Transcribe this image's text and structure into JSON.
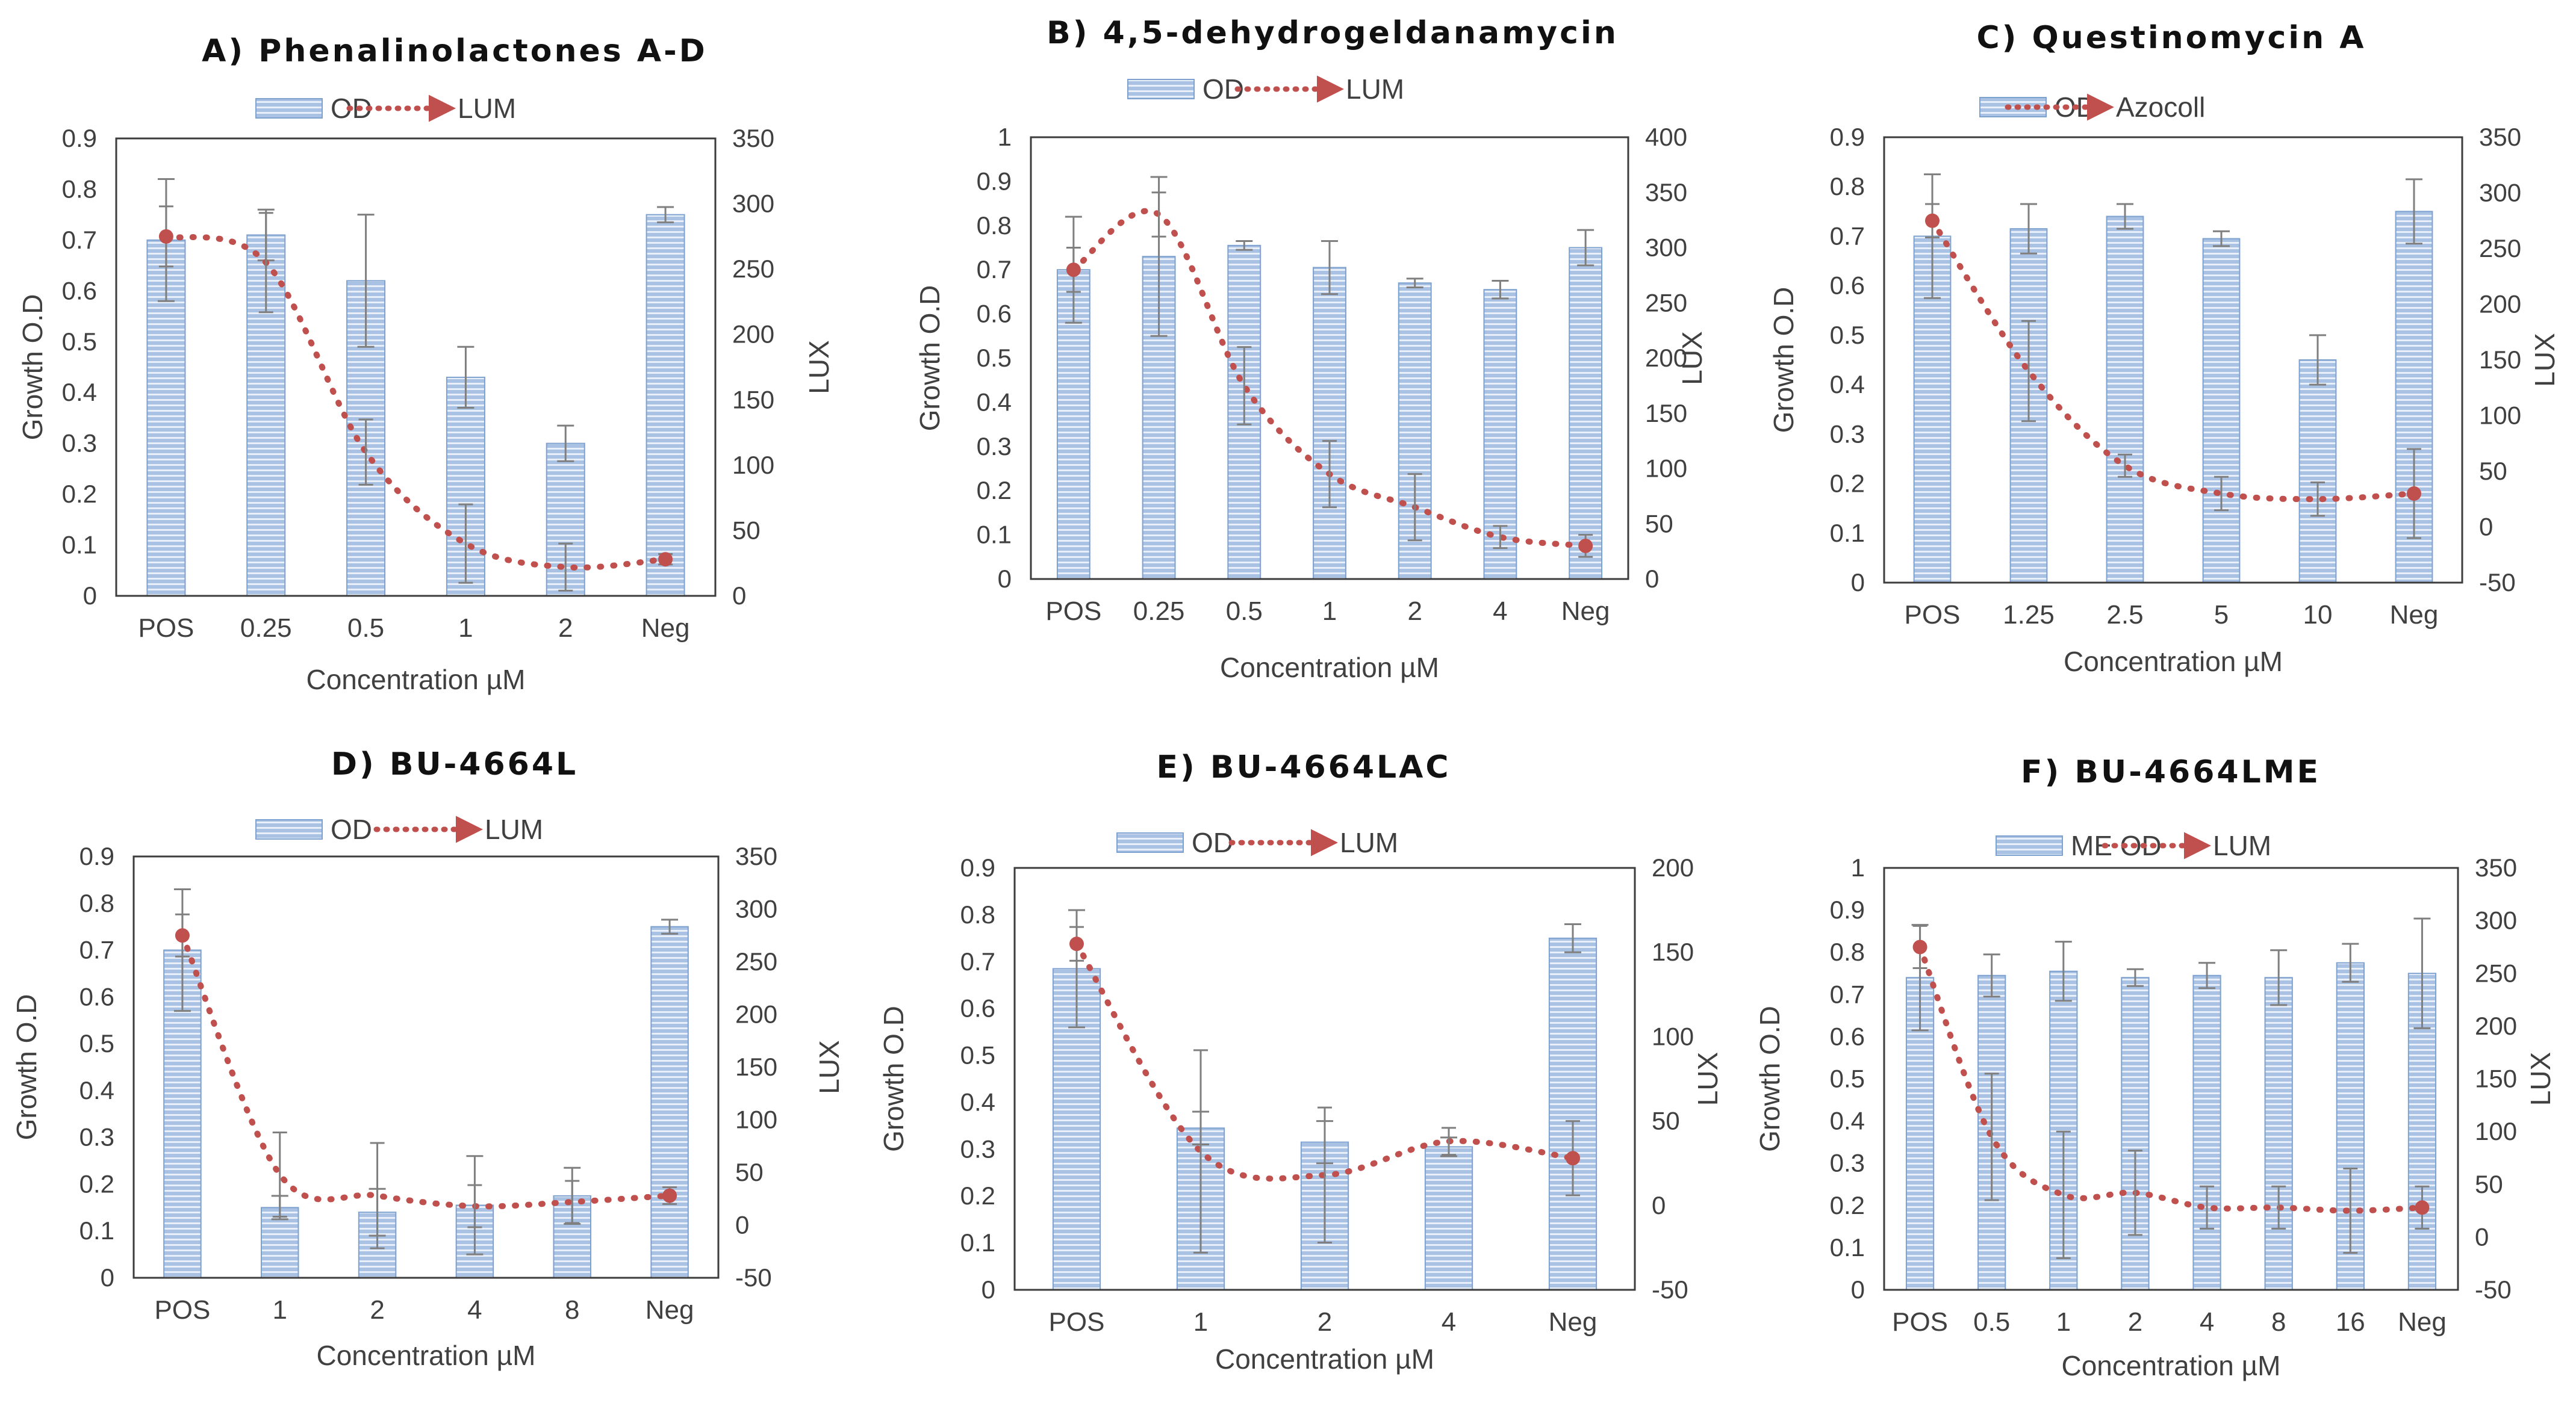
{
  "figure": {
    "colors": {
      "bar_fill": "#a9c1e2",
      "bar_stripe": "#ffffff",
      "bar_edge": "#7ea2d0",
      "line": "#c0504d",
      "error": "#7f7f7f",
      "frame": "#3c3c3c"
    }
  },
  "chart_data": [
    {
      "type": "bar",
      "title": "A) Phenalinolactones A-D",
      "xlabel": "Concentration µM",
      "ylabel": "Growth O.D",
      "y2label": "LUX",
      "categories": [
        "POS",
        "0.25",
        "0.5",
        "1",
        "2",
        "Neg"
      ],
      "ylim": [
        0,
        0.9
      ],
      "yticks": [
        "0",
        "0.1",
        "0.2",
        "0.3",
        "0.4",
        "0.5",
        "0.6",
        "0.7",
        "0.8",
        "0.9"
      ],
      "y2lim": [
        0,
        350
      ],
      "y2ticks": [
        "0",
        "50",
        "100",
        "150",
        "200",
        "250",
        "300",
        "350"
      ],
      "series": [
        {
          "name": "OD",
          "kind": "bar",
          "axis": "left",
          "values": [
            0.7,
            0.71,
            0.62,
            0.43,
            0.3,
            0.75
          ],
          "errors": [
            0.12,
            0.05,
            0.13,
            0.06,
            0.035,
            0.015
          ]
        },
        {
          "name": "LUM",
          "kind": "line",
          "axis": "right",
          "values": [
            275,
            255,
            110,
            40,
            22,
            28
          ],
          "errors": [
            23,
            38,
            25,
            30,
            18,
            4
          ]
        }
      ]
    },
    {
      "type": "bar",
      "title": "B) 4,5-dehydrogeldanamycin",
      "xlabel": "Concentration µM",
      "ylabel": "Growth O.D",
      "y2label": "LUX",
      "categories": [
        "POS",
        "0.25",
        "0.5",
        "1",
        "2",
        "4",
        "Neg"
      ],
      "ylim": [
        0,
        1
      ],
      "yticks": [
        "0",
        "0.1",
        "0.2",
        "0.3",
        "0.4",
        "0.5",
        "0.6",
        "0.7",
        "0.8",
        "0.9",
        "1"
      ],
      "y2lim": [
        0,
        400
      ],
      "y2ticks": [
        "0",
        "50",
        "100",
        "150",
        "200",
        "250",
        "300",
        "350",
        "400"
      ],
      "series": [
        {
          "name": "OD",
          "kind": "bar",
          "axis": "left",
          "values": [
            0.7,
            0.73,
            0.755,
            0.705,
            0.67,
            0.655,
            0.75
          ],
          "errors": [
            0.12,
            0.18,
            0.01,
            0.06,
            0.01,
            0.02,
            0.04
          ]
        },
        {
          "name": "LUM",
          "kind": "line",
          "axis": "right",
          "values": [
            280,
            330,
            175,
            95,
            65,
            38,
            30
          ],
          "errors": [
            20,
            20,
            35,
            30,
            30,
            10,
            10
          ]
        }
      ]
    },
    {
      "type": "bar",
      "title": "C) Questinomycin A",
      "xlabel": "Concentration µM",
      "ylabel": "Growth O.D",
      "y2label": "LUX",
      "categories": [
        "POS",
        "1.25",
        "2.5",
        "5",
        "10",
        "Neg"
      ],
      "ylim": [
        0,
        0.9
      ],
      "yticks": [
        "0",
        "0.1",
        "0.2",
        "0.3",
        "0.4",
        "0.5",
        "0.6",
        "0.7",
        "0.8",
        "0.9"
      ],
      "y2lim": [
        -50,
        350
      ],
      "y2ticks": [
        "-50",
        "0",
        "50",
        "100",
        "150",
        "200",
        "250",
        "300",
        "350"
      ],
      "series": [
        {
          "name": "OD",
          "kind": "bar",
          "axis": "left",
          "values": [
            0.7,
            0.715,
            0.74,
            0.695,
            0.45,
            0.75
          ],
          "errors": [
            0.125,
            0.05,
            0.025,
            0.015,
            0.05,
            0.065
          ]
        },
        {
          "name": "Azocoll",
          "kind": "line",
          "axis": "right",
          "values": [
            275,
            140,
            55,
            30,
            25,
            30
          ],
          "errors": [
            15,
            45,
            10,
            15,
            15,
            40
          ]
        }
      ]
    },
    {
      "type": "bar",
      "title": "D) BU-4664L",
      "xlabel": "Concentration µM",
      "ylabel": "Growth O.D",
      "y2label": "LUX",
      "categories": [
        "POS",
        "1",
        "2",
        "4",
        "8",
        "Neg"
      ],
      "ylim": [
        0,
        0.9
      ],
      "yticks": [
        "0",
        "0.1",
        "0.2",
        "0.3",
        "0.4",
        "0.5",
        "0.6",
        "0.7",
        "0.8",
        "0.9"
      ],
      "y2lim": [
        -50,
        350
      ],
      "y2ticks": [
        "-50",
        "0",
        "50",
        "100",
        "150",
        "200",
        "250",
        "300",
        "350"
      ],
      "series": [
        {
          "name": "OD",
          "kind": "bar",
          "axis": "left",
          "values": [
            0.7,
            0.15,
            0.14,
            0.155,
            0.175,
            0.75
          ],
          "errors": [
            0.13,
            0.025,
            0.05,
            0.105,
            0.06,
            0.015
          ]
        },
        {
          "name": "LUM",
          "kind": "line",
          "axis": "right",
          "values": [
            275,
            48,
            28,
            18,
            22,
            28
          ],
          "errors": [
            20,
            40,
            50,
            20,
            20,
            8
          ]
        }
      ]
    },
    {
      "type": "bar",
      "title": "E) BU-4664LAC",
      "xlabel": "Concentration µM",
      "ylabel": "Growth O.D",
      "y2label": "LUX",
      "categories": [
        "POS",
        "1",
        "2",
        "4",
        "Neg"
      ],
      "ylim": [
        0,
        0.9
      ],
      "yticks": [
        "0",
        "0.1",
        "0.2",
        "0.3",
        "0.4",
        "0.5",
        "0.6",
        "0.7",
        "0.8",
        "0.9"
      ],
      "y2lim": [
        -50,
        200
      ],
      "y2ticks": [
        "-50",
        "0",
        "50",
        "100",
        "150",
        "200"
      ],
      "series": [
        {
          "name": "OD",
          "kind": "bar",
          "axis": "left",
          "values": [
            0.685,
            0.345,
            0.315,
            0.305,
            0.75
          ],
          "errors": [
            0.125,
            0.035,
            0.045,
            0.02,
            0.03
          ]
        },
        {
          "name": "LUM",
          "kind": "line",
          "axis": "right",
          "values": [
            155,
            32,
            18,
            38,
            28
          ],
          "errors": [
            10,
            60,
            40,
            8,
            22
          ]
        }
      ]
    },
    {
      "type": "bar",
      "title": "F) BU-4664LME",
      "xlabel": "Concentration µM",
      "ylabel": "Growth O.D",
      "y2label": "LUX",
      "categories": [
        "POS",
        "0.5",
        "1",
        "2",
        "4",
        "8",
        "16",
        "Neg"
      ],
      "ylim": [
        0,
        1
      ],
      "yticks": [
        "0",
        "0.1",
        "0.2",
        "0.3",
        "0.4",
        "0.5",
        "0.6",
        "0.7",
        "0.8",
        "0.9",
        "1"
      ],
      "y2lim": [
        -50,
        350
      ],
      "y2ticks": [
        "-50",
        "0",
        "50",
        "100",
        "150",
        "200",
        "250",
        "300",
        "350"
      ],
      "series": [
        {
          "name": "ME OD",
          "kind": "bar",
          "axis": "left",
          "values": [
            0.74,
            0.745,
            0.755,
            0.74,
            0.745,
            0.74,
            0.775,
            0.75
          ],
          "errors": [
            0.125,
            0.05,
            0.07,
            0.02,
            0.03,
            0.065,
            0.045,
            0.13
          ]
        },
        {
          "name": "LUM",
          "kind": "line",
          "axis": "right",
          "values": [
            275,
            95,
            40,
            42,
            28,
            28,
            25,
            28
          ],
          "errors": [
            20,
            60,
            60,
            40,
            20,
            20,
            40,
            20
          ]
        }
      ]
    }
  ]
}
